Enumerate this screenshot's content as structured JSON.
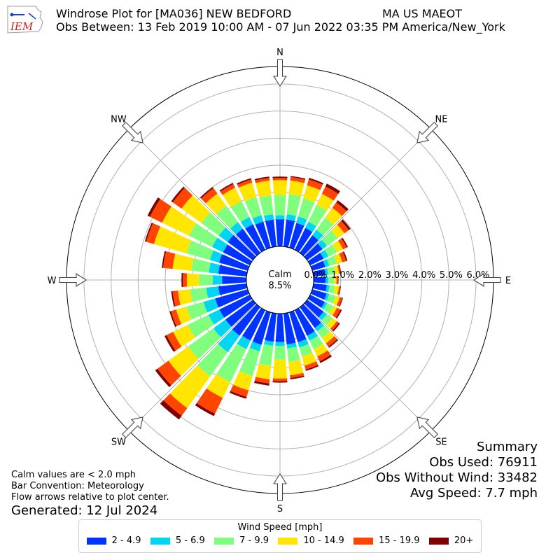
{
  "header": {
    "title_left": "Windrose Plot for [MA036] NEW BEDFORD",
    "title_right": "MA US MAEOT",
    "subtitle": "Obs Between: 13 Feb 2019 10:00 AM - 07 Jun 2022 03:35 PM America/New_York",
    "logo_text": "IEM"
  },
  "summary": {
    "heading": "Summary",
    "obs_used": "Obs Used: 76911",
    "obs_without_wind": "Obs Without Wind: 33482",
    "avg_speed": "Avg Speed: 7.7 mph"
  },
  "notes": {
    "line1": "Calm values are < 2.0 mph",
    "line2": "Bar Convention: Meteorology",
    "line3": "Flow arrows relative to plot center.",
    "generated": "Generated: 12 Jul 2024"
  },
  "calm": {
    "label": "Calm",
    "value": "8.5%"
  },
  "legend": {
    "title": "Wind Speed [mph]",
    "items": [
      {
        "label": "2 - 4.9",
        "color": "#0033ff"
      },
      {
        "label": "5 - 6.9",
        "color": "#00d5f2"
      },
      {
        "label": "7 - 9.9",
        "color": "#80ff7f"
      },
      {
        "label": "10 - 14.9",
        "color": "#ffe500"
      },
      {
        "label": "15 - 19.9",
        "color": "#ff4500"
      },
      {
        "label": "20+",
        "color": "#800000"
      }
    ]
  },
  "chart_data": {
    "type": "windrose",
    "directions_deg": [
      0,
      10,
      20,
      30,
      40,
      50,
      60,
      70,
      80,
      90,
      100,
      110,
      120,
      130,
      140,
      150,
      160,
      170,
      180,
      190,
      200,
      210,
      220,
      230,
      240,
      250,
      260,
      270,
      280,
      290,
      300,
      310,
      320,
      330,
      340,
      350
    ],
    "compass_labels": [
      {
        "label": "N",
        "deg": 0
      },
      {
        "label": "NE",
        "deg": 45
      },
      {
        "label": "E",
        "deg": 90
      },
      {
        "label": "SE",
        "deg": 135
      },
      {
        "label": "S",
        "deg": 180
      },
      {
        "label": "SW",
        "deg": 225
      },
      {
        "label": "W",
        "deg": 270
      },
      {
        "label": "NW",
        "deg": 315
      }
    ],
    "radial_ticks": [
      "0.0%",
      "1.0%",
      "2.0%",
      "3.0%",
      "4.0%",
      "5.0%",
      "6.0%"
    ],
    "radial_range_pct": [
      0,
      6
    ],
    "calm_pct": 8.5,
    "series_names": [
      "2 - 4.9",
      "5 - 6.9",
      "7 - 9.9",
      "10 - 14.9",
      "15 - 19.9",
      "20+"
    ],
    "cumulative_pct": [
      [
        1.0,
        1.15,
        1.9,
        2.45,
        2.53,
        2.58
      ],
      [
        1.0,
        1.2,
        1.95,
        2.45,
        2.58,
        2.62
      ],
      [
        0.95,
        1.2,
        1.9,
        2.4,
        2.62,
        2.68
      ],
      [
        0.9,
        1.15,
        1.85,
        2.3,
        2.6,
        2.72
      ],
      [
        0.8,
        1.05,
        1.6,
        2.05,
        2.3,
        2.4
      ],
      [
        0.7,
        0.9,
        1.4,
        1.7,
        1.9,
        1.98
      ],
      [
        0.55,
        0.75,
        1.1,
        1.35,
        1.5,
        1.55
      ],
      [
        0.5,
        0.65,
        0.95,
        1.15,
        1.3,
        1.35
      ],
      [
        0.45,
        0.55,
        0.8,
        0.95,
        1.0,
        1.03
      ],
      [
        0.45,
        0.55,
        0.75,
        0.85,
        0.9,
        0.92
      ],
      [
        0.5,
        0.6,
        0.8,
        0.95,
        1.0,
        1.02
      ],
      [
        0.55,
        0.65,
        0.9,
        1.05,
        1.15,
        1.18
      ],
      [
        0.6,
        0.7,
        0.95,
        1.1,
        1.25,
        1.3
      ],
      [
        0.75,
        0.9,
        1.15,
        1.35,
        1.45,
        1.5
      ],
      [
        0.95,
        1.1,
        1.4,
        1.65,
        1.8,
        1.85
      ],
      [
        1.05,
        1.25,
        1.6,
        1.9,
        2.1,
        2.17
      ],
      [
        1.15,
        1.35,
        1.7,
        2.05,
        2.2,
        2.25
      ],
      [
        1.15,
        1.3,
        1.8,
        2.3,
        2.4,
        2.45
      ],
      [
        1.05,
        1.2,
        1.7,
        2.4,
        2.5,
        2.55
      ],
      [
        1.05,
        1.2,
        1.95,
        2.45,
        2.6,
        2.68
      ],
      [
        1.25,
        1.5,
        2.45,
        3.0,
        3.25,
        3.32
      ],
      [
        1.25,
        1.6,
        2.95,
        3.6,
        4.25,
        4.35
      ],
      [
        1.3,
        2.05,
        3.15,
        4.6,
        4.95,
        5.12
      ],
      [
        1.25,
        1.8,
        2.95,
        3.85,
        4.35,
        4.45
      ],
      [
        1.25,
        1.7,
        2.55,
        3.15,
        3.42,
        3.5
      ],
      [
        1.25,
        1.7,
        2.35,
        2.75,
        2.95,
        3.0
      ],
      [
        1.05,
        1.5,
        2.1,
        2.55,
        2.75,
        2.8
      ],
      [
        0.9,
        1.25,
        1.75,
        2.2,
        2.35,
        2.4
      ],
      [
        1.05,
        1.4,
        2.05,
        2.75,
        3.1,
        3.15
      ],
      [
        1.1,
        1.45,
        2.35,
        3.6,
        3.9,
        3.95
      ],
      [
        1.1,
        1.55,
        2.5,
        3.6,
        4.1,
        4.2
      ],
      [
        1.15,
        1.55,
        2.35,
        3.25,
        3.65,
        3.72
      ],
      [
        1.1,
        1.4,
        2.15,
        2.7,
        2.95,
        3.0
      ],
      [
        1.05,
        1.35,
        2.0,
        2.55,
        2.7,
        2.75
      ],
      [
        1.0,
        1.25,
        1.95,
        2.5,
        2.62,
        2.67
      ],
      [
        1.0,
        1.2,
        1.9,
        2.45,
        2.55,
        2.6
      ]
    ]
  }
}
